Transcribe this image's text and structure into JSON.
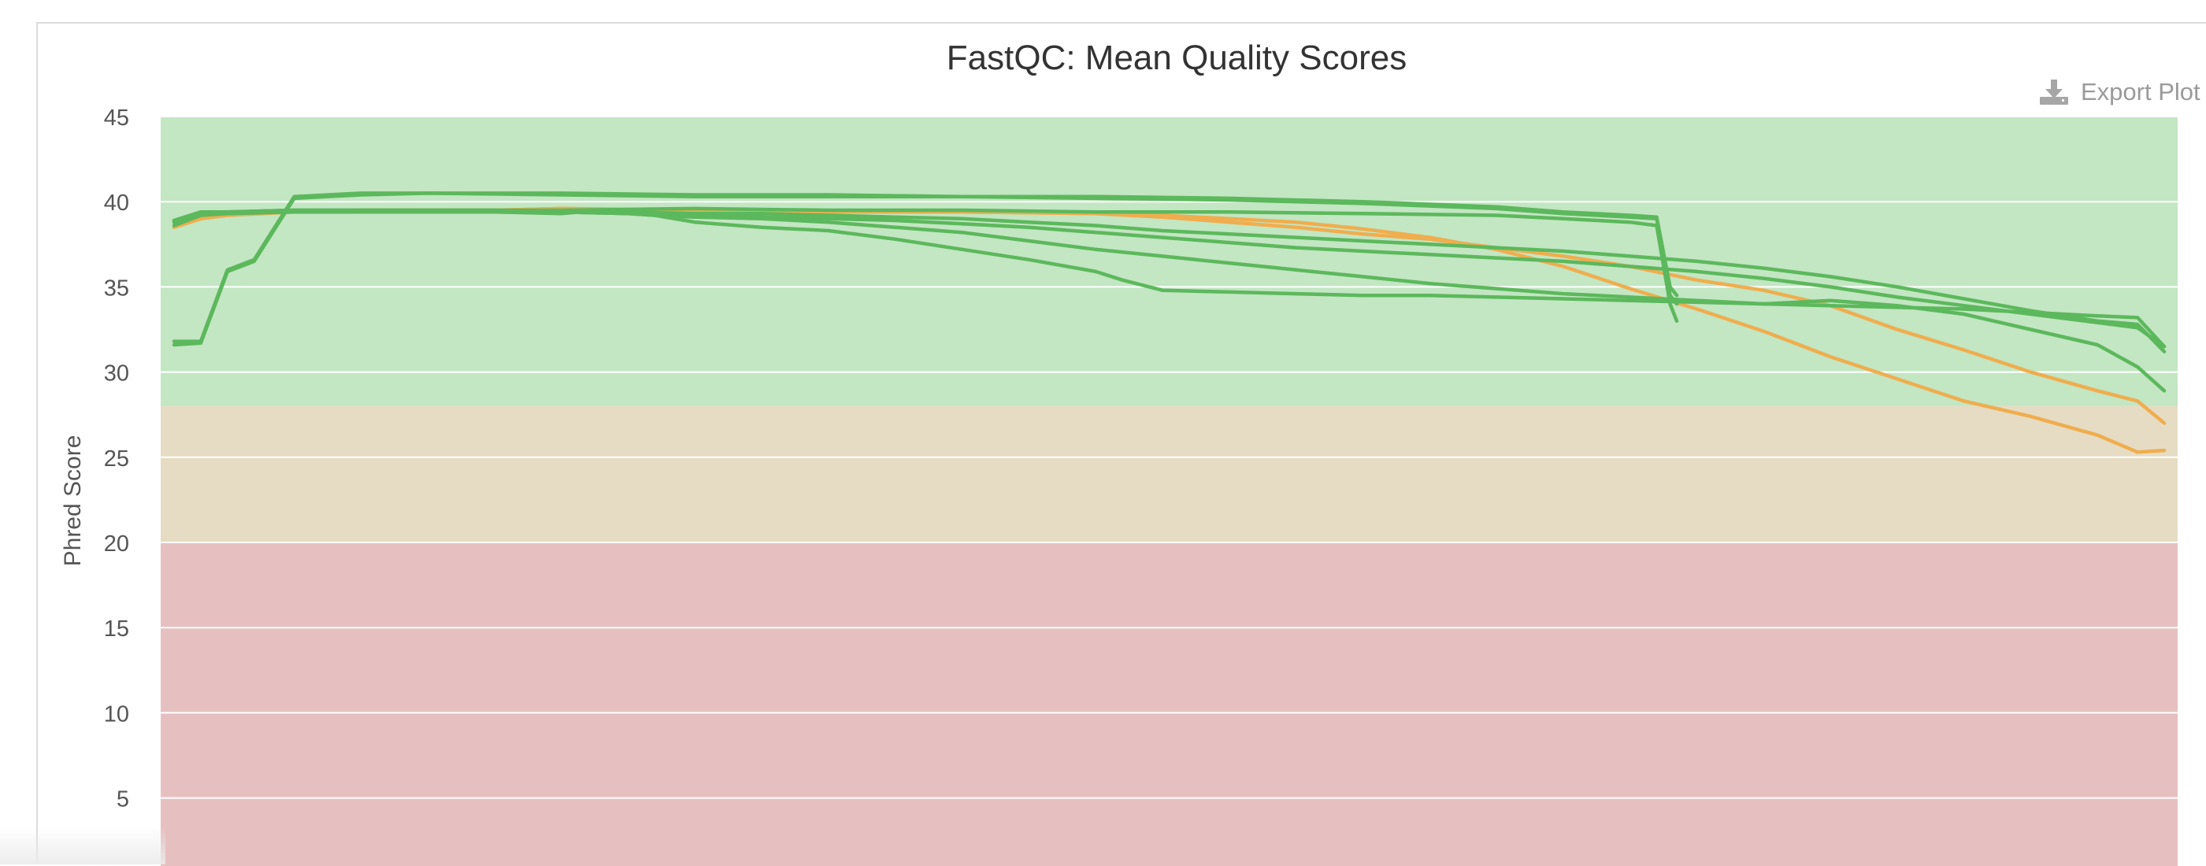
{
  "export_label": "Export Plot",
  "colors": {
    "pass": "#5cb85c",
    "warn": "#f0ad4e",
    "zone_good": "#c3e6c3",
    "zone_warn": "#e6dcc3",
    "zone_fail": "#e6c0c0",
    "grid": "#ffffff",
    "text": "#333333",
    "tick": "#555555"
  },
  "chart_data": {
    "type": "line",
    "title": "FastQC: Mean Quality Scores",
    "xlabel": "",
    "ylabel": "Phred Score",
    "xlim": [
      0,
      151
    ],
    "ylim": [
      0,
      45
    ],
    "y_ticks": [
      5,
      10,
      15,
      20,
      25,
      30,
      35,
      40,
      45
    ],
    "grid": true,
    "legend": "none",
    "zones": [
      {
        "name": "good",
        "from": 28,
        "to": 45
      },
      {
        "name": "warn",
        "from": 20,
        "to": 28
      },
      {
        "name": "fail",
        "from": 0,
        "to": 20
      }
    ],
    "series": [
      {
        "status": "pass",
        "x": [
          1,
          3,
          5,
          7,
          10,
          15,
          20,
          30,
          40,
          50,
          60,
          70,
          80,
          90,
          100,
          105,
          110,
          112,
          113,
          113.5
        ],
        "y": [
          31.8,
          31.8,
          36.0,
          36.6,
          40.3,
          40.5,
          40.5,
          40.5,
          40.4,
          40.4,
          40.3,
          40.3,
          40.2,
          40.0,
          39.7,
          39.4,
          39.2,
          39.1,
          35.0,
          34.5
        ]
      },
      {
        "status": "pass",
        "x": [
          1,
          3,
          5,
          7,
          10,
          15,
          20,
          30,
          40,
          50,
          60,
          70,
          80,
          90,
          100,
          105,
          110,
          112,
          113,
          113.5
        ],
        "y": [
          31.6,
          31.7,
          35.9,
          36.5,
          40.2,
          40.4,
          40.5,
          40.4,
          40.3,
          40.3,
          40.3,
          40.2,
          40.1,
          39.9,
          39.6,
          39.3,
          39.1,
          39.0,
          34.5,
          34.0
        ]
      },
      {
        "status": "pass",
        "x": [
          1,
          3,
          5,
          10,
          15,
          20,
          30,
          40,
          50,
          60,
          70,
          80,
          90,
          100,
          105,
          110,
          112,
          113,
          113.5
        ],
        "y": [
          38.9,
          39.3,
          39.4,
          39.5,
          39.5,
          39.5,
          39.5,
          39.6,
          39.5,
          39.5,
          39.4,
          39.4,
          39.3,
          39.2,
          39.0,
          38.8,
          38.6,
          34.0,
          33.0
        ]
      },
      {
        "status": "pass",
        "x": [
          1,
          3,
          5,
          10,
          15,
          20,
          30,
          35,
          40,
          45,
          50,
          55,
          60,
          65,
          70,
          75,
          80,
          85,
          90,
          95,
          100,
          105,
          110,
          115,
          120,
          125,
          130,
          135,
          140,
          145,
          148,
          150
        ],
        "y": [
          38.9,
          39.4,
          39.4,
          39.4,
          39.4,
          39.4,
          39.4,
          39.4,
          39.3,
          39.3,
          39.2,
          39.1,
          39.0,
          38.8,
          38.6,
          38.3,
          38.1,
          37.9,
          37.7,
          37.5,
          37.3,
          37.1,
          36.8,
          36.5,
          36.1,
          35.6,
          35.0,
          34.3,
          33.6,
          33.0,
          32.8,
          31.2
        ]
      },
      {
        "status": "pass",
        "x": [
          1,
          3,
          5,
          10,
          15,
          20,
          25,
          30,
          35,
          37,
          40,
          45,
          50,
          55,
          60,
          65,
          70,
          75,
          80,
          85,
          90,
          95,
          100,
          105,
          110,
          115,
          120,
          125,
          130,
          135,
          140,
          145,
          148,
          150
        ],
        "y": [
          38.8,
          39.2,
          39.4,
          39.5,
          39.5,
          39.5,
          39.5,
          39.4,
          39.3,
          39.2,
          39.2,
          39.1,
          39.0,
          38.9,
          38.7,
          38.5,
          38.2,
          37.9,
          37.6,
          37.3,
          37.1,
          36.9,
          36.7,
          36.5,
          36.2,
          35.9,
          35.5,
          35.0,
          34.4,
          33.9,
          33.4,
          32.9,
          32.6,
          31.5
        ]
      },
      {
        "status": "pass",
        "x": [
          1,
          3,
          5,
          10,
          15,
          20,
          25,
          30,
          35,
          37,
          40,
          45,
          50,
          55,
          60,
          65,
          70,
          75,
          80,
          85,
          90,
          95,
          100,
          105,
          110,
          115,
          120,
          125,
          130,
          135,
          140,
          145,
          148,
          150
        ],
        "y": [
          38.6,
          39.2,
          39.3,
          39.4,
          39.4,
          39.4,
          39.4,
          39.4,
          39.3,
          39.2,
          39.1,
          39.0,
          38.8,
          38.5,
          38.2,
          37.7,
          37.2,
          36.8,
          36.4,
          36.0,
          35.6,
          35.2,
          34.9,
          34.6,
          34.4,
          34.2,
          34.0,
          33.9,
          33.8,
          33.7,
          33.5,
          33.3,
          33.2,
          31.5
        ]
      },
      {
        "status": "pass",
        "x": [
          1,
          3,
          5,
          10,
          15,
          20,
          25,
          30,
          33,
          35,
          37,
          40,
          45,
          50,
          55,
          60,
          65,
          70,
          72,
          75,
          80,
          85,
          90,
          95,
          100,
          105,
          110,
          115,
          120,
          125,
          130,
          135,
          140,
          145,
          148,
          150
        ],
        "y": [
          38.8,
          39.3,
          39.4,
          39.4,
          39.4,
          39.4,
          39.4,
          39.3,
          39.5,
          39.4,
          39.2,
          38.8,
          38.5,
          38.3,
          37.8,
          37.2,
          36.6,
          35.9,
          35.4,
          34.8,
          34.7,
          34.6,
          34.5,
          34.5,
          34.4,
          34.3,
          34.2,
          34.1,
          34.0,
          34.2,
          33.9,
          33.4,
          32.5,
          31.6,
          30.3,
          28.9
        ]
      },
      {
        "status": "warn",
        "x": [
          1,
          3,
          5,
          10,
          15,
          20,
          25,
          30,
          40,
          45,
          50,
          60,
          70,
          75,
          80,
          85,
          90,
          95,
          100,
          105,
          110,
          115,
          120,
          125,
          130,
          135,
          140,
          145,
          148,
          150
        ],
        "y": [
          38.5,
          39.0,
          39.2,
          39.4,
          39.5,
          39.5,
          39.5,
          39.6,
          39.5,
          39.5,
          39.4,
          39.4,
          39.3,
          39.1,
          38.8,
          38.5,
          38.1,
          37.8,
          37.3,
          36.8,
          36.2,
          35.4,
          34.8,
          33.9,
          32.5,
          31.3,
          30.0,
          28.9,
          28.3,
          27.0
        ]
      },
      {
        "status": "warn",
        "x": [
          1,
          3,
          5,
          10,
          15,
          20,
          25,
          30,
          40,
          45,
          50,
          60,
          70,
          75,
          80,
          85,
          90,
          95,
          100,
          105,
          110,
          115,
          120,
          125,
          130,
          135,
          140,
          145,
          148,
          150
        ],
        "y": [
          38.6,
          39.1,
          39.3,
          39.4,
          39.5,
          39.5,
          39.5,
          39.6,
          39.5,
          39.5,
          39.4,
          39.4,
          39.3,
          39.2,
          39.0,
          38.8,
          38.4,
          37.9,
          37.2,
          36.2,
          34.9,
          33.7,
          32.4,
          30.9,
          29.6,
          28.3,
          27.4,
          26.3,
          25.3,
          25.4
        ]
      }
    ]
  }
}
